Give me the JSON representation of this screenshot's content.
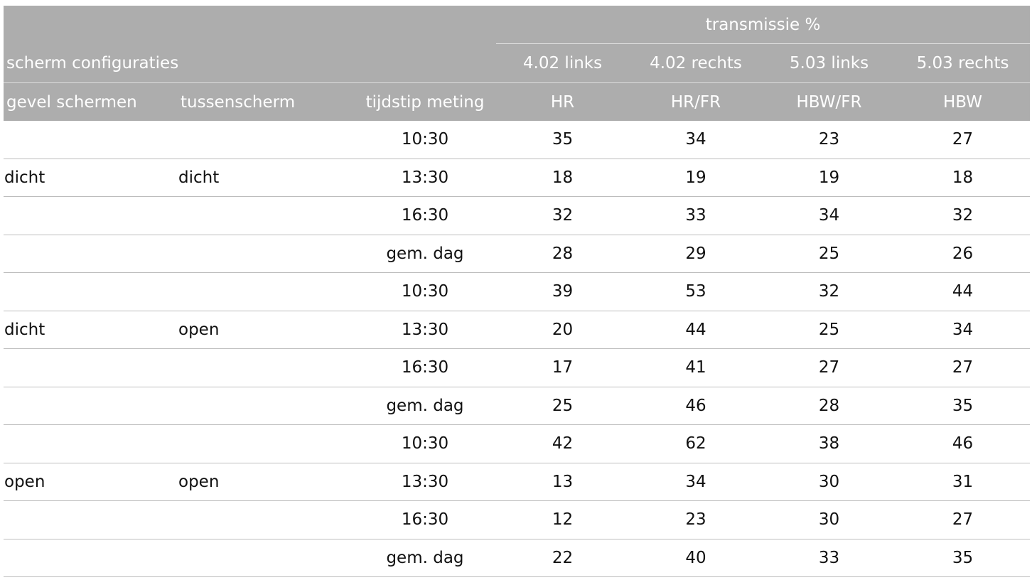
{
  "header": {
    "group_label": "transmissie %",
    "config_label": "scherm configuraties",
    "series": [
      "4.02 links",
      "4.02 rechts",
      "5.03 links",
      "5.03 rechts"
    ],
    "columns": [
      "gevel schermen",
      "tussenscherm",
      "tijdstip meting"
    ],
    "series_types": [
      "HR",
      "HR/FR",
      "HBW/FR",
      "HBW"
    ]
  },
  "rows": [
    {
      "gevel": "",
      "tussen": "",
      "tijd": "10:30",
      "v": [
        "35",
        "34",
        "23",
        "27"
      ]
    },
    {
      "gevel": "dicht",
      "tussen": "dicht",
      "tijd": "13:30",
      "v": [
        "18",
        "19",
        "19",
        "18"
      ]
    },
    {
      "gevel": "",
      "tussen": "",
      "tijd": "16:30",
      "v": [
        "32",
        "33",
        "34",
        "32"
      ]
    },
    {
      "gevel": "",
      "tussen": "",
      "tijd": "gem. dag",
      "v": [
        "28",
        "29",
        "25",
        "26"
      ]
    },
    {
      "gevel": "",
      "tussen": "",
      "tijd": "10:30",
      "v": [
        "39",
        "53",
        "32",
        "44"
      ]
    },
    {
      "gevel": "dicht",
      "tussen": "open",
      "tijd": "13:30",
      "v": [
        "20",
        "44",
        "25",
        "34"
      ]
    },
    {
      "gevel": "",
      "tussen": "",
      "tijd": "16:30",
      "v": [
        "17",
        "41",
        "27",
        "27"
      ]
    },
    {
      "gevel": "",
      "tussen": "",
      "tijd": "gem. dag",
      "v": [
        "25",
        "46",
        "28",
        "35"
      ]
    },
    {
      "gevel": "",
      "tussen": "",
      "tijd": "10:30",
      "v": [
        "42",
        "62",
        "38",
        "46"
      ]
    },
    {
      "gevel": "open",
      "tussen": "open",
      "tijd": "13:30",
      "v": [
        "13",
        "34",
        "30",
        "31"
      ]
    },
    {
      "gevel": "",
      "tussen": "",
      "tijd": "16:30",
      "v": [
        "12",
        "23",
        "30",
        "27"
      ]
    },
    {
      "gevel": "",
      "tussen": "",
      "tijd": "gem. dag",
      "v": [
        "22",
        "40",
        "33",
        "35"
      ]
    }
  ]
}
